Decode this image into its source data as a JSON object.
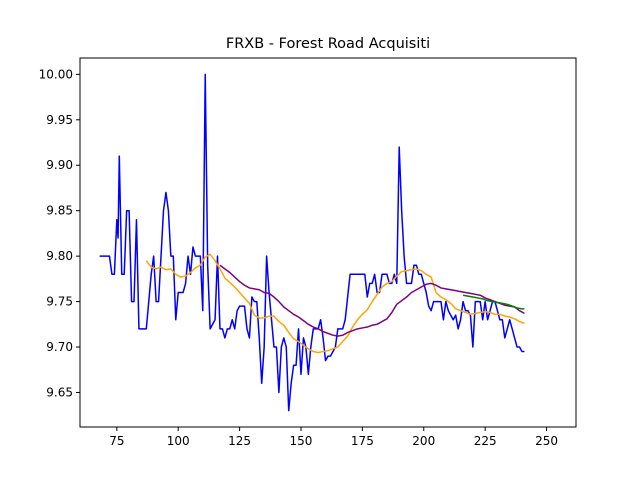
{
  "chart_data": {
    "type": "line",
    "title": "FRXB - Forest Road Acquisiti",
    "xlabel": "",
    "ylabel": "",
    "xlim": [
      60,
      262
    ],
    "ylim": [
      9.612,
      10.018
    ],
    "x_ticks": [
      75,
      100,
      125,
      150,
      175,
      200,
      225,
      250
    ],
    "y_ticks": [
      9.65,
      9.7,
      9.75,
      9.8,
      9.85,
      9.9,
      9.95,
      10.0
    ],
    "y_tick_labels": [
      "9.65",
      "9.70",
      "9.75",
      "9.80",
      "9.85",
      "9.90",
      "9.95",
      "10.00"
    ],
    "grid": false,
    "legend": "none",
    "series": [
      {
        "color": "#0000ff",
        "points": [
          [
            68,
            9.8
          ],
          [
            72,
            9.8
          ],
          [
            73,
            9.78
          ],
          [
            74,
            9.78
          ],
          [
            75,
            9.84
          ],
          [
            75.5,
            9.82
          ],
          [
            76,
            9.91
          ],
          [
            77,
            9.78
          ],
          [
            78,
            9.78
          ],
          [
            79,
            9.85
          ],
          [
            80,
            9.85
          ],
          [
            81,
            9.75
          ],
          [
            82,
            9.75
          ],
          [
            83,
            9.84
          ],
          [
            84,
            9.72
          ],
          [
            85,
            9.72
          ],
          [
            87,
            9.72
          ],
          [
            89,
            9.78
          ],
          [
            90,
            9.8
          ],
          [
            91,
            9.75
          ],
          [
            92,
            9.75
          ],
          [
            94,
            9.85
          ],
          [
            95,
            9.87
          ],
          [
            96,
            9.85
          ],
          [
            97,
            9.8
          ],
          [
            98,
            9.8
          ],
          [
            99,
            9.73
          ],
          [
            100,
            9.76
          ],
          [
            102,
            9.76
          ],
          [
            103,
            9.77
          ],
          [
            104,
            9.8
          ],
          [
            105,
            9.78
          ],
          [
            106,
            9.81
          ],
          [
            107,
            9.8
          ],
          [
            109,
            9.8
          ],
          [
            110,
            9.74
          ],
          [
            111,
            10.0
          ],
          [
            112,
            9.79
          ],
          [
            113,
            9.72
          ],
          [
            115,
            9.73
          ],
          [
            116,
            9.8
          ],
          [
            117,
            9.72
          ],
          [
            118,
            9.72
          ],
          [
            119,
            9.71
          ],
          [
            120,
            9.72
          ],
          [
            121,
            9.72
          ],
          [
            122,
            9.73
          ],
          [
            123,
            9.72
          ],
          [
            124,
            9.74
          ],
          [
            125,
            9.745
          ],
          [
            127,
            9.745
          ],
          [
            128,
            9.72
          ],
          [
            129,
            9.71
          ],
          [
            130,
            9.755
          ],
          [
            131,
            9.75
          ],
          [
            132,
            9.75
          ],
          [
            133,
            9.71
          ],
          [
            134,
            9.66
          ],
          [
            135,
            9.7
          ],
          [
            136,
            9.8
          ],
          [
            137,
            9.76
          ],
          [
            138,
            9.73
          ],
          [
            139,
            9.7
          ],
          [
            140,
            9.7
          ],
          [
            141,
            9.65
          ],
          [
            142,
            9.7
          ],
          [
            143,
            9.71
          ],
          [
            144,
            9.7
          ],
          [
            145,
            9.63
          ],
          [
            146,
            9.66
          ],
          [
            147,
            9.68
          ],
          [
            148,
            9.68
          ],
          [
            149,
            9.72
          ],
          [
            150,
            9.67
          ],
          [
            151,
            9.71
          ],
          [
            152,
            9.7
          ],
          [
            153,
            9.67
          ],
          [
            154,
            9.7
          ],
          [
            155,
            9.72
          ],
          [
            157,
            9.72
          ],
          [
            158,
            9.73
          ],
          [
            159,
            9.71
          ],
          [
            160,
            9.685
          ],
          [
            161,
            9.69
          ],
          [
            162,
            9.69
          ],
          [
            164,
            9.7
          ],
          [
            165,
            9.72
          ],
          [
            167,
            9.72
          ],
          [
            168,
            9.73
          ],
          [
            170,
            9.78
          ],
          [
            172,
            9.78
          ],
          [
            175,
            9.78
          ],
          [
            176,
            9.78
          ],
          [
            177,
            9.755
          ],
          [
            178,
            9.77
          ],
          [
            179,
            9.77
          ],
          [
            180,
            9.78
          ],
          [
            181,
            9.76
          ],
          [
            182,
            9.76
          ],
          [
            183,
            9.78
          ],
          [
            184,
            9.78
          ],
          [
            185,
            9.78
          ],
          [
            186,
            9.77
          ],
          [
            187,
            9.77
          ],
          [
            188,
            9.78
          ],
          [
            189,
            9.77
          ],
          [
            190,
            9.92
          ],
          [
            191,
            9.85
          ],
          [
            192,
            9.8
          ],
          [
            193,
            9.77
          ],
          [
            195,
            9.77
          ],
          [
            196,
            9.79
          ],
          [
            197,
            9.79
          ],
          [
            198,
            9.78
          ],
          [
            199,
            9.78
          ],
          [
            200,
            9.77
          ],
          [
            201,
            9.76
          ],
          [
            202,
            9.745
          ],
          [
            203,
            9.74
          ],
          [
            204,
            9.75
          ],
          [
            206,
            9.75
          ],
          [
            207,
            9.75
          ],
          [
            208,
            9.73
          ],
          [
            209,
            9.75
          ],
          [
            210,
            9.74
          ],
          [
            211,
            9.735
          ],
          [
            212,
            9.73
          ],
          [
            213,
            9.735
          ],
          [
            214,
            9.72
          ],
          [
            215,
            9.73
          ],
          [
            216,
            9.75
          ],
          [
            217,
            9.74
          ],
          [
            218,
            9.74
          ],
          [
            219,
            9.735
          ],
          [
            220,
            9.7
          ],
          [
            221,
            9.75
          ],
          [
            222,
            9.75
          ],
          [
            223,
            9.75
          ],
          [
            224,
            9.73
          ],
          [
            225,
            9.75
          ],
          [
            226,
            9.73
          ],
          [
            227,
            9.74
          ],
          [
            228,
            9.75
          ],
          [
            229,
            9.75
          ],
          [
            230,
            9.74
          ],
          [
            231,
            9.73
          ],
          [
            232,
            9.73
          ],
          [
            233,
            9.71
          ],
          [
            234,
            9.72
          ],
          [
            235,
            9.73
          ],
          [
            236,
            9.72
          ],
          [
            237,
            9.71
          ],
          [
            238,
            9.7
          ],
          [
            239,
            9.7
          ],
          [
            240,
            9.695
          ],
          [
            241,
            9.695
          ]
        ]
      },
      {
        "color": "#ffa500",
        "points": [
          [
            87,
            9.795
          ],
          [
            89,
            9.788
          ],
          [
            91,
            9.786
          ],
          [
            93,
            9.788
          ],
          [
            95,
            9.785
          ],
          [
            97,
            9.786
          ],
          [
            99,
            9.78
          ],
          [
            101,
            9.777
          ],
          [
            103,
            9.778
          ],
          [
            105,
            9.782
          ],
          [
            107,
            9.787
          ],
          [
            109,
            9.79
          ],
          [
            111,
            9.799
          ],
          [
            113,
            9.802
          ],
          [
            115,
            9.795
          ],
          [
            117,
            9.786
          ],
          [
            119,
            9.776
          ],
          [
            121,
            9.771
          ],
          [
            123,
            9.766
          ],
          [
            125,
            9.76
          ],
          [
            127,
            9.754
          ],
          [
            129,
            9.748
          ],
          [
            131,
            9.735
          ],
          [
            133,
            9.732
          ],
          [
            135,
            9.732
          ],
          [
            137,
            9.734
          ],
          [
            139,
            9.734
          ],
          [
            141,
            9.728
          ],
          [
            143,
            9.724
          ],
          [
            145,
            9.716
          ],
          [
            147,
            9.709
          ],
          [
            149,
            9.706
          ],
          [
            151,
            9.702
          ],
          [
            153,
            9.698
          ],
          [
            155,
            9.695
          ],
          [
            157,
            9.694
          ],
          [
            159,
            9.695
          ],
          [
            161,
            9.696
          ],
          [
            163,
            9.698
          ],
          [
            165,
            9.7
          ],
          [
            167,
            9.706
          ],
          [
            169,
            9.712
          ],
          [
            171,
            9.722
          ],
          [
            173,
            9.73
          ],
          [
            175,
            9.736
          ],
          [
            177,
            9.741
          ],
          [
            179,
            9.75
          ],
          [
            181,
            9.758
          ],
          [
            183,
            9.766
          ],
          [
            185,
            9.77
          ],
          [
            187,
            9.772
          ],
          [
            189,
            9.778
          ],
          [
            191,
            9.783
          ],
          [
            193,
            9.784
          ],
          [
            195,
            9.785
          ],
          [
            197,
            9.786
          ],
          [
            199,
            9.784
          ],
          [
            201,
            9.78
          ],
          [
            203,
            9.777
          ],
          [
            205,
            9.76
          ],
          [
            207,
            9.755
          ],
          [
            209,
            9.752
          ],
          [
            211,
            9.748
          ],
          [
            213,
            9.742
          ],
          [
            215,
            9.74
          ],
          [
            217,
            9.738
          ],
          [
            219,
            9.736
          ],
          [
            221,
            9.737
          ],
          [
            223,
            9.738
          ],
          [
            225,
            9.739
          ],
          [
            227,
            9.738
          ],
          [
            229,
            9.736
          ],
          [
            231,
            9.736
          ],
          [
            233,
            9.734
          ],
          [
            235,
            9.733
          ],
          [
            237,
            9.731
          ],
          [
            239,
            9.728
          ],
          [
            241,
            9.726
          ]
        ]
      },
      {
        "color": "#800080",
        "points": [
          [
            117,
            9.79
          ],
          [
            119,
            9.786
          ],
          [
            121,
            9.782
          ],
          [
            123,
            9.777
          ],
          [
            125,
            9.772
          ],
          [
            127,
            9.768
          ],
          [
            129,
            9.765
          ],
          [
            131,
            9.764
          ],
          [
            133,
            9.763
          ],
          [
            135,
            9.76
          ],
          [
            137,
            9.759
          ],
          [
            139,
            9.755
          ],
          [
            141,
            9.75
          ],
          [
            143,
            9.744
          ],
          [
            145,
            9.74
          ],
          [
            147,
            9.736
          ],
          [
            149,
            9.733
          ],
          [
            151,
            9.729
          ],
          [
            153,
            9.725
          ],
          [
            155,
            9.722
          ],
          [
            157,
            9.72
          ],
          [
            159,
            9.717
          ],
          [
            161,
            9.715
          ],
          [
            163,
            9.713
          ],
          [
            165,
            9.712
          ],
          [
            167,
            9.713
          ],
          [
            169,
            9.716
          ],
          [
            171,
            9.718
          ],
          [
            173,
            9.72
          ],
          [
            175,
            9.721
          ],
          [
            177,
            9.722
          ],
          [
            179,
            9.724
          ],
          [
            181,
            9.725
          ],
          [
            183,
            9.728
          ],
          [
            185,
            9.731
          ],
          [
            187,
            9.738
          ],
          [
            189,
            9.747
          ],
          [
            191,
            9.751
          ],
          [
            193,
            9.755
          ],
          [
            195,
            9.76
          ],
          [
            197,
            9.763
          ],
          [
            199,
            9.766
          ],
          [
            201,
            9.769
          ],
          [
            203,
            9.77
          ],
          [
            205,
            9.768
          ],
          [
            207,
            9.765
          ],
          [
            209,
            9.764
          ],
          [
            211,
            9.763
          ],
          [
            213,
            9.762
          ],
          [
            215,
            9.761
          ],
          [
            217,
            9.76
          ],
          [
            219,
            9.759
          ],
          [
            221,
            9.758
          ],
          [
            223,
            9.757
          ],
          [
            225,
            9.754
          ],
          [
            227,
            9.752
          ],
          [
            229,
            9.75
          ],
          [
            231,
            9.748
          ],
          [
            233,
            9.746
          ],
          [
            235,
            9.745
          ],
          [
            237,
            9.744
          ],
          [
            239,
            9.74
          ],
          [
            241,
            9.737
          ]
        ]
      },
      {
        "color": "#008000",
        "points": [
          [
            216,
            9.757
          ],
          [
            218,
            9.756
          ],
          [
            220,
            9.755
          ],
          [
            222,
            9.754
          ],
          [
            224,
            9.753
          ],
          [
            226,
            9.751
          ],
          [
            228,
            9.75
          ],
          [
            230,
            9.749
          ],
          [
            232,
            9.748
          ],
          [
            234,
            9.747
          ],
          [
            236,
            9.745
          ],
          [
            238,
            9.743
          ],
          [
            240,
            9.742
          ],
          [
            241,
            9.742
          ]
        ]
      }
    ]
  }
}
